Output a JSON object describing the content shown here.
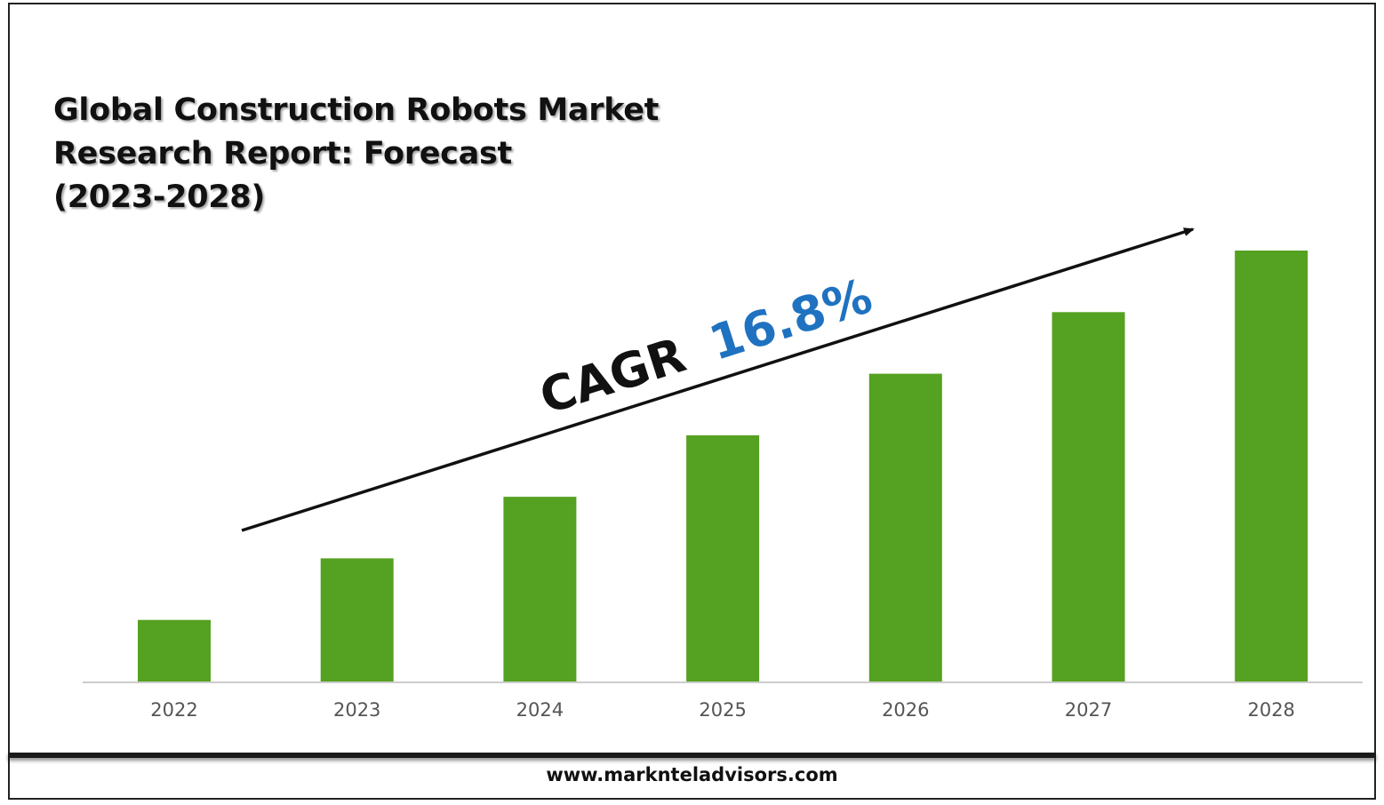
{
  "header": {
    "title": "Global Construction Robots Market\nResearch Report: Forecast\n(2023-2028)"
  },
  "annotation": {
    "cagr_label": "CAGR",
    "cagr_value": "16.8%"
  },
  "footer": {
    "url": "www.markntel​advisors.com"
  },
  "colors": {
    "bar": "#55a121",
    "cagr_value": "#1f72c0",
    "axis": "#cccccc",
    "tick_label": "#555555"
  },
  "chart_data": {
    "type": "bar",
    "categories": [
      "2022",
      "2023",
      "2024",
      "2025",
      "2026",
      "2027",
      "2028"
    ],
    "values": [
      1.0,
      2.0,
      3.0,
      4.0,
      5.0,
      6.0,
      7.0
    ],
    "ylim": [
      0,
      7.0
    ],
    "title": "Global Construction Robots Market Research Report: Forecast (2023-2028)",
    "xlabel": "",
    "ylabel": "",
    "grid": false,
    "legend": "none",
    "annotation": "CAGR 16.8%"
  }
}
